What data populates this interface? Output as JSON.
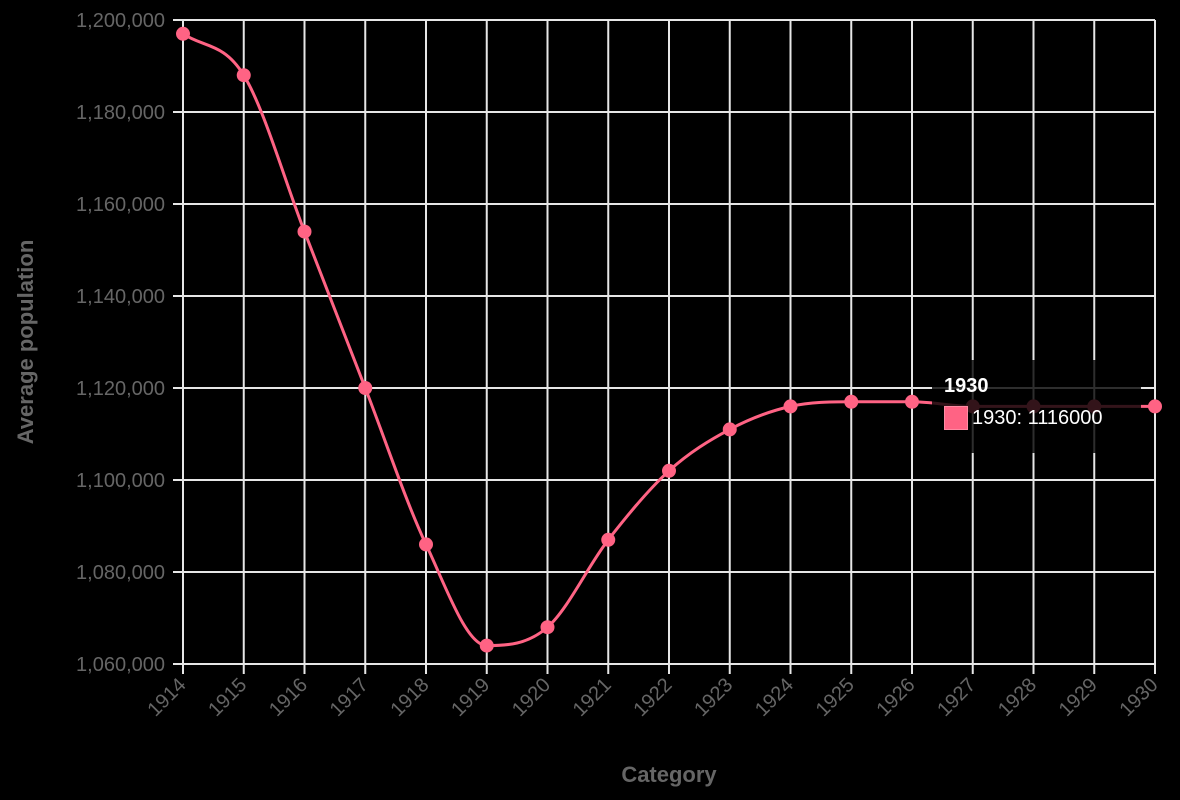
{
  "chart_data": {
    "type": "line",
    "title": "",
    "xlabel": "Category",
    "ylabel": "Average population",
    "categories": [
      "1914",
      "1915",
      "1916",
      "1917",
      "1918",
      "1919",
      "1920",
      "1921",
      "1922",
      "1923",
      "1924",
      "1925",
      "1926",
      "1927",
      "1928",
      "1929",
      "1930"
    ],
    "series": [
      {
        "name": "Average population",
        "color": "#ff6384",
        "values": [
          1197000,
          1188000,
          1154000,
          1120000,
          1086000,
          1064000,
          1068000,
          1087000,
          1102000,
          1111000,
          1116000,
          1117000,
          1117000,
          1116000,
          1116000,
          1116000,
          1116000
        ]
      }
    ],
    "ylim": [
      1060000,
      1200000
    ],
    "yticks": [
      1060000,
      1080000,
      1100000,
      1120000,
      1140000,
      1160000,
      1180000,
      1200000
    ],
    "ytick_labels": [
      "1,060,000",
      "1,080,000",
      "1,100,000",
      "1,120,000",
      "1,140,000",
      "1,160,000",
      "1,180,000",
      "1,200,000"
    ],
    "grid": true,
    "legend": "none",
    "smooth": true
  },
  "tooltip": {
    "title": "1930",
    "label": "1930: 1116000",
    "swatch_color": "#ff6384"
  },
  "colors": {
    "background": "#000000",
    "grid": "#e6e6e6",
    "text": "#666666",
    "line": "#ff6384"
  }
}
